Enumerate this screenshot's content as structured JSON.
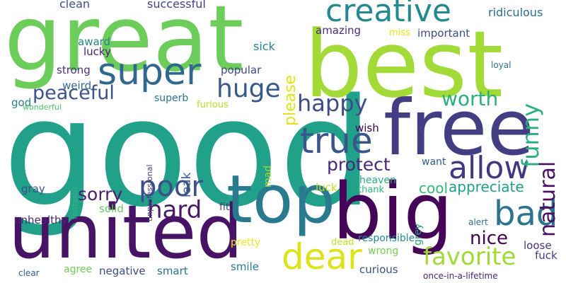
{
  "word_cloud": {
    "words": [
      {
        "text": "good",
        "color": "#21a08a",
        "vertical": false
      },
      {
        "text": "great",
        "color": "#6ccd5a",
        "vertical": false
      },
      {
        "text": "best",
        "color": "#a2da37",
        "vertical": false
      },
      {
        "text": "free",
        "color": "#433d84",
        "vertical": false
      },
      {
        "text": "united",
        "color": "#471365",
        "vertical": false
      },
      {
        "text": "top",
        "color": "#297a8e",
        "vertical": false
      },
      {
        "text": "big",
        "color": "#450457",
        "vertical": false
      },
      {
        "text": "super",
        "color": "#30688e",
        "vertical": false
      },
      {
        "text": "creative",
        "color": "#23898e",
        "vertical": false
      },
      {
        "text": "true",
        "color": "#39558c",
        "vertical": false
      },
      {
        "text": "allow",
        "color": "#453681",
        "vertical": false
      },
      {
        "text": "poor",
        "color": "#3d4e8a",
        "vertical": false
      },
      {
        "text": "huge",
        "color": "#38598c",
        "vertical": false
      },
      {
        "text": "happy",
        "color": "#3e4a89",
        "vertical": false
      },
      {
        "text": "dear",
        "color": "#dde318",
        "vertical": false
      },
      {
        "text": "bad",
        "color": "#2c738e",
        "vertical": false
      },
      {
        "text": "favorite",
        "color": "#a0da39",
        "vertical": false
      },
      {
        "text": "hard",
        "color": "#48186a",
        "vertical": false
      },
      {
        "text": "peaceful",
        "color": "#3b528b",
        "vertical": false
      },
      {
        "text": "worth",
        "color": "#2ab07f",
        "vertical": false
      },
      {
        "text": "funny",
        "color": "#29af7f",
        "vertical": true
      },
      {
        "text": "natural",
        "color": "#471063",
        "vertical": true
      },
      {
        "text": "please",
        "color": "#dfe318",
        "vertical": true
      },
      {
        "text": "protect",
        "color": "#482878",
        "vertical": false
      },
      {
        "text": "sorry",
        "color": "#481f70",
        "vertical": false
      },
      {
        "text": "appreciate",
        "color": "#1f9e89",
        "vertical": false
      },
      {
        "text": "nice",
        "color": "#440154",
        "vertical": false
      },
      {
        "text": "cool",
        "color": "#35b779",
        "vertical": false
      },
      {
        "text": "clean",
        "color": "#3e4c8a",
        "vertical": false
      },
      {
        "text": "successful",
        "color": "#404588",
        "vertical": false
      },
      {
        "text": "ridiculous",
        "color": "#2d708e",
        "vertical": false
      },
      {
        "text": "amazing",
        "color": "#472d7b",
        "vertical": false
      },
      {
        "text": "important",
        "color": "#3e4a89",
        "vertical": false
      },
      {
        "text": "miss",
        "color": "#e5e419",
        "vertical": false
      },
      {
        "text": "award",
        "color": "#27808e",
        "vertical": false
      },
      {
        "text": "sick",
        "color": "#25848e",
        "vertical": false
      },
      {
        "text": "lucky",
        "color": "#482173",
        "vertical": false
      },
      {
        "text": "strong",
        "color": "#46327e",
        "vertical": false
      },
      {
        "text": "weird",
        "color": "#31688e",
        "vertical": false
      },
      {
        "text": "popular",
        "color": "#3e4989",
        "vertical": false
      },
      {
        "text": "god",
        "color": "#26828e",
        "vertical": false
      },
      {
        "text": "wonderful",
        "color": "#4ac16d",
        "vertical": false
      },
      {
        "text": "superb",
        "color": "#2c728e",
        "vertical": false
      },
      {
        "text": "furious",
        "color": "#b5de2b",
        "vertical": false
      },
      {
        "text": "loyal",
        "color": "#2e6e8e",
        "vertical": false
      },
      {
        "text": "wish",
        "color": "#440154",
        "vertical": false
      },
      {
        "text": "want",
        "color": "#38598c",
        "vertical": false
      },
      {
        "text": "heaven",
        "color": "#29af7f",
        "vertical": false
      },
      {
        "text": "luck",
        "color": "#c2df23",
        "vertical": false
      },
      {
        "text": "thank",
        "color": "#34b679",
        "vertical": false
      },
      {
        "text": "leak",
        "color": "#38598c",
        "vertical": true
      },
      {
        "text": "mad",
        "color": "#a5db36",
        "vertical": true
      },
      {
        "text": "unprofessional",
        "color": "#414487",
        "vertical": true
      },
      {
        "text": "fantastic",
        "color": "#31b57b",
        "vertical": true
      },
      {
        "text": "grey",
        "color": "#20a386",
        "vertical": true
      },
      {
        "text": "gray",
        "color": "#3b518b",
        "vertical": false
      },
      {
        "text": "fit",
        "color": "#433d84",
        "vertical": false
      },
      {
        "text": "solid",
        "color": "#65cb5e",
        "vertical": false
      },
      {
        "text": "unhealthy",
        "color": "#482576",
        "vertical": false
      },
      {
        "text": "pretty",
        "color": "#f1e51d",
        "vertical": false
      },
      {
        "text": "responsible",
        "color": "#23898e",
        "vertical": false
      },
      {
        "text": "dead",
        "color": "#c2df23",
        "vertical": false
      },
      {
        "text": "alert",
        "color": "#2d708e",
        "vertical": false
      },
      {
        "text": "loose",
        "color": "#46337e",
        "vertical": false
      },
      {
        "text": "fuck",
        "color": "#424086",
        "vertical": false
      },
      {
        "text": "wrong",
        "color": "#75d054",
        "vertical": false
      },
      {
        "text": "curious",
        "color": "#3b528b",
        "vertical": false
      },
      {
        "text": "smile",
        "color": "#287c8e",
        "vertical": false
      },
      {
        "text": "negative",
        "color": "#3e4a89",
        "vertical": false
      },
      {
        "text": "smart",
        "color": "#2c728e",
        "vertical": false
      },
      {
        "text": "agree",
        "color": "#6ece58",
        "vertical": false
      },
      {
        "text": "clear",
        "color": "#365c8d",
        "vertical": false
      },
      {
        "text": "once-in-a-lifetime",
        "color": "#482475",
        "vertical": false
      }
    ]
  }
}
